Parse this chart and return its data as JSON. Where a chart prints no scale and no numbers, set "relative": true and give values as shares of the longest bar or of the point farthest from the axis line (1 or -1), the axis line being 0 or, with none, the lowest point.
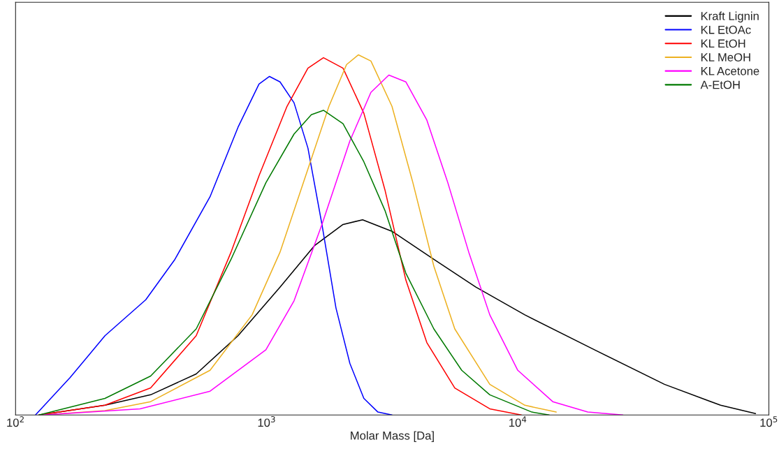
{
  "chart_data": {
    "type": "line",
    "xlabel": "Molar Mass [Da]",
    "log": "x",
    "relative": true,
    "xlim": [
      100,
      100000
    ],
    "xticks": [
      {
        "value": 100,
        "label": "10$^{2}$"
      },
      {
        "value": 1000,
        "label": "10$^{3}$"
      },
      {
        "value": 10000,
        "label": "10$^{4}$"
      },
      {
        "value": 100000,
        "label": "10$^{5}$"
      }
    ],
    "grid": false,
    "legend": "top right",
    "tick_labels": "x",
    "line_style": "solid",
    "marker": "none",
    "series": [
      {
        "name": "Kraft Lignin",
        "color": "#000000",
        "x": [
          124,
          227,
          345,
          524,
          769,
          1130,
          1555,
          2014,
          2410,
          3155,
          4632,
          6810,
          10670,
          20200,
          38400,
          64200,
          88500
        ],
        "values": [
          0,
          0.027,
          0.056,
          0.114,
          0.22,
          0.355,
          0.471,
          0.529,
          0.542,
          0.51,
          0.432,
          0.355,
          0.278,
          0.181,
          0.085,
          0.027,
          0.004
        ]
      },
      {
        "name": "KL EtOAc",
        "color": "#0000ff",
        "x": [
          120,
          165,
          227,
          330,
          431,
          595,
          769,
          932,
          1026,
          1130,
          1285,
          1460,
          1660,
          1888,
          2145,
          2438,
          2773,
          3155
        ],
        "values": [
          0,
          0.104,
          0.22,
          0.32,
          0.432,
          0.606,
          0.799,
          0.919,
          0.94,
          0.925,
          0.867,
          0.741,
          0.529,
          0.297,
          0.143,
          0.046,
          0.008,
          0
        ]
      },
      {
        "name": "KL EtOH",
        "color": "#ff0000",
        "x": [
          124,
          227,
          345,
          524,
          721,
          932,
          1205,
          1460,
          1683,
          2014,
          2438,
          2958,
          3582,
          4343,
          5612,
          7736,
          10330
        ],
        "values": [
          0,
          0.027,
          0.075,
          0.22,
          0.452,
          0.664,
          0.857,
          0.963,
          0.992,
          0.963,
          0.838,
          0.625,
          0.375,
          0.201,
          0.075,
          0.017,
          0
        ]
      },
      {
        "name": "KL MeOH",
        "color": "#edb120",
        "x": [
          128,
          227,
          345,
          595,
          875,
          1130,
          1460,
          1770,
          2080,
          2318,
          2601,
          3155,
          3822,
          4632,
          5612,
          7736,
          10670,
          14220
        ],
        "values": [
          0,
          0.012,
          0.037,
          0.124,
          0.278,
          0.452,
          0.683,
          0.857,
          0.973,
          1.0,
          0.983,
          0.857,
          0.645,
          0.413,
          0.239,
          0.085,
          0.027,
          0.008
        ]
      },
      {
        "name": "KL Acetone",
        "color": "#ff00ff",
        "x": [
          128,
          313,
          595,
          993,
          1285,
          1660,
          2145,
          2601,
          3066,
          3582,
          4343,
          5265,
          6380,
          7736,
          10000,
          13780,
          19000,
          26200
        ],
        "values": [
          0,
          0.017,
          0.066,
          0.181,
          0.317,
          0.529,
          0.761,
          0.896,
          0.944,
          0.925,
          0.819,
          0.645,
          0.452,
          0.278,
          0.124,
          0.037,
          0.008,
          0
        ]
      },
      {
        "name": "A-EtOH",
        "color": "#007a00",
        "x": [
          124,
          227,
          345,
          524,
          721,
          993,
          1285,
          1506,
          1683,
          2014,
          2438,
          2958,
          3582,
          4632,
          5980,
          7736,
          11380,
          13340
        ],
        "values": [
          0,
          0.046,
          0.108,
          0.239,
          0.432,
          0.645,
          0.78,
          0.834,
          0.846,
          0.809,
          0.703,
          0.568,
          0.394,
          0.239,
          0.124,
          0.056,
          0.008,
          0
        ]
      }
    ]
  }
}
